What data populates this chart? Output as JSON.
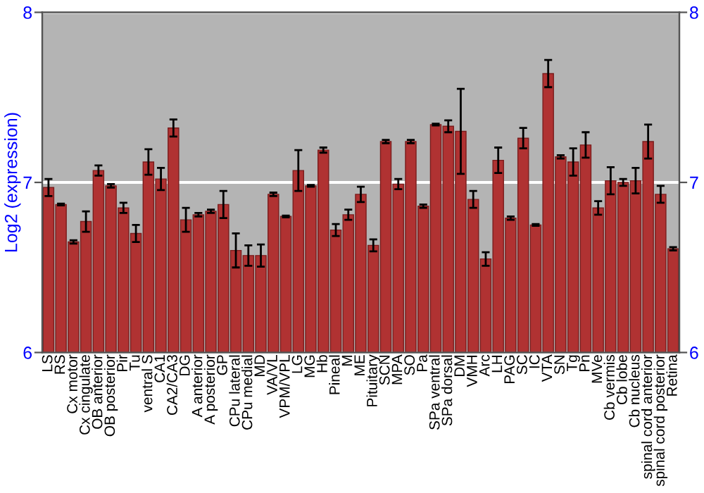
{
  "chart_data": {
    "type": "bar",
    "ylabel": "Log2 (expression)",
    "categories": [
      "LS",
      "RS",
      "Cx motor",
      "Cx cingulate",
      "OB anterior",
      "OB posterior",
      "Pir",
      "Tu",
      "ventral S",
      "CA1",
      "CA2/CA3",
      "DG",
      "A anterior",
      "A posterior",
      "GP",
      "CPu lateral",
      "CPu medial",
      "MD",
      "VA/VL",
      "VPM/VPL",
      "LG",
      "MG",
      "Hb",
      "Pineal",
      "M",
      "ME",
      "Pituitary",
      "SCN",
      "MPA",
      "SO",
      "Pa",
      "SPa ventral",
      "SPa dorsal",
      "DM",
      "VMH",
      "Arc",
      "LH",
      "PAG",
      "SC",
      "IC",
      "VTA",
      "SN",
      "Tg",
      "Pn",
      "MVe",
      "Cb vermis",
      "Cb lobe",
      "Cb nucleus",
      "spinal cord anterior",
      "spinal cord posterior",
      "Retina"
    ],
    "values": [
      6.97,
      6.87,
      6.65,
      6.77,
      7.07,
      6.98,
      6.85,
      6.7,
      7.12,
      7.02,
      7.32,
      6.78,
      6.81,
      6.83,
      6.87,
      6.6,
      6.57,
      6.57,
      6.93,
      6.8,
      7.07,
      6.98,
      7.19,
      6.72,
      6.81,
      6.93,
      6.63,
      7.24,
      6.99,
      7.24,
      6.86,
      7.34,
      7.33,
      7.3,
      6.9,
      6.55,
      7.13,
      6.79,
      7.26,
      6.75,
      7.64,
      7.15,
      7.12,
      7.22,
      6.85,
      7.01,
      7.0,
      7.01,
      7.24,
      6.93,
      6.61
    ],
    "errors": [
      0.05,
      0.005,
      0.01,
      0.06,
      0.03,
      0.01,
      0.03,
      0.05,
      0.075,
      0.065,
      0.05,
      0.07,
      0.01,
      0.01,
      0.08,
      0.1,
      0.06,
      0.065,
      0.01,
      0.005,
      0.12,
      0.005,
      0.015,
      0.035,
      0.03,
      0.045,
      0.035,
      0.01,
      0.03,
      0.01,
      0.01,
      0.005,
      0.035,
      0.25,
      0.05,
      0.04,
      0.075,
      0.01,
      0.06,
      0.005,
      0.08,
      0.01,
      0.08,
      0.075,
      0.04,
      0.08,
      0.02,
      0.075,
      0.1,
      0.05,
      0.01
    ],
    "color": "#b03232",
    "ylim": [
      6,
      8
    ],
    "yticks": [
      6,
      7,
      8
    ],
    "y2lim": [
      6,
      8
    ],
    "y2ticks": [
      6,
      7,
      8
    ],
    "grid": "y"
  }
}
